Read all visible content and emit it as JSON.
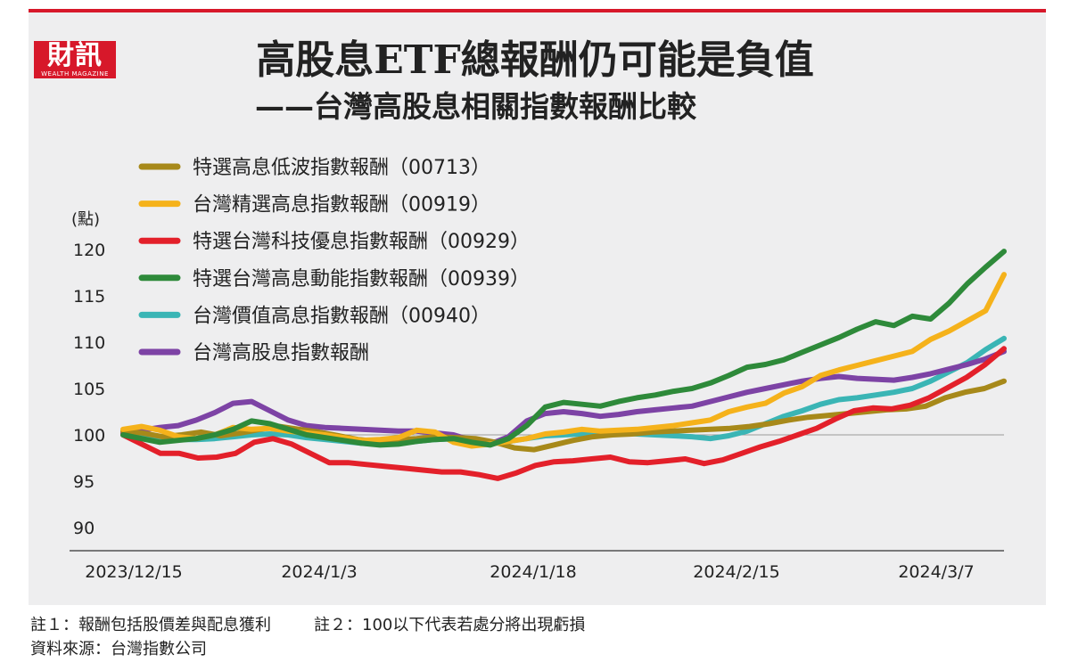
{
  "logo": {
    "text": "財訊",
    "subtext": "WEALTH MAGAZINE"
  },
  "header": {
    "title": "高股息ETF總報酬仍可能是負值",
    "subtitle": "——台灣高股息相關指數報酬比較"
  },
  "colors": {
    "accent": "#d7182a",
    "panel": "#eeeeef"
  },
  "chart_data": {
    "type": "line",
    "yunit": "(點)",
    "ylim": [
      90,
      120
    ],
    "yticks": [
      90,
      95,
      100,
      105,
      110,
      115,
      120
    ],
    "baseline": 100,
    "x_tick_labels": [
      "2023/12/15",
      "2024/1/3",
      "2024/1/18",
      "2024/2/15",
      "2024/3/7"
    ],
    "legend_position": "top-left",
    "series": [
      {
        "name": "特選高息低波指數報酬（00713）",
        "color": "#a7891a",
        "values": [
          100.4,
          100.2,
          99.8,
          100.0,
          100.3,
          99.9,
          100.2,
          100.6,
          100.9,
          100.6,
          100.3,
          99.9,
          99.5,
          99.3,
          99.5,
          99.6,
          99.8,
          99.7,
          99.6,
          99.2,
          98.6,
          98.4,
          98.9,
          99.4,
          99.8,
          100.0,
          100.1,
          100.3,
          100.4,
          100.5,
          100.6,
          100.7,
          100.9,
          101.2,
          101.6,
          101.9,
          102.1,
          102.3,
          102.5,
          102.7,
          102.8,
          103.1,
          104.0,
          104.6,
          105.0,
          105.8
        ]
      },
      {
        "name": "台灣精選高息指數報酬（00919）",
        "color": "#f5b21b",
        "values": [
          100.6,
          100.9,
          100.5,
          99.8,
          99.6,
          100.0,
          100.8,
          100.6,
          100.7,
          100.4,
          100.2,
          100.0,
          99.7,
          99.4,
          99.5,
          99.7,
          100.5,
          100.3,
          99.2,
          98.8,
          99.0,
          99.3,
          99.6,
          100.1,
          100.3,
          100.6,
          100.4,
          100.5,
          100.6,
          100.8,
          101.0,
          101.3,
          101.6,
          102.5,
          103.0,
          103.4,
          104.5,
          105.2,
          106.4,
          107.0,
          107.5,
          108.0,
          108.5,
          109.0,
          110.3,
          111.2,
          112.3,
          113.4,
          117.3
        ]
      },
      {
        "name": "特選台灣科技優息指數報酬（00929）",
        "color": "#e3202a",
        "values": [
          100.0,
          99.0,
          98.0,
          98.0,
          97.5,
          97.6,
          98.0,
          99.2,
          99.6,
          99.0,
          98.0,
          97.0,
          97.0,
          96.8,
          96.6,
          96.4,
          96.2,
          96.0,
          96.0,
          95.7,
          95.3,
          95.9,
          96.7,
          97.1,
          97.2,
          97.4,
          97.6,
          97.1,
          97.0,
          97.2,
          97.4,
          96.9,
          97.3,
          98.0,
          98.7,
          99.3,
          100.0,
          100.7,
          101.7,
          102.6,
          102.9,
          102.8,
          103.2,
          104.0,
          105.1,
          106.2,
          107.6,
          109.3
        ]
      },
      {
        "name": "特選台灣高息動能指數報酬（00939）",
        "color": "#2e8a3a",
        "values": [
          100.0,
          99.6,
          99.2,
          99.4,
          99.6,
          100.0,
          100.6,
          101.5,
          101.2,
          100.6,
          100.0,
          99.7,
          99.4,
          99.1,
          98.9,
          99.0,
          99.3,
          99.5,
          99.6,
          99.2,
          98.9,
          99.6,
          101.0,
          103.0,
          103.5,
          103.3,
          103.1,
          103.6,
          104.0,
          104.3,
          104.7,
          105.0,
          105.6,
          106.4,
          107.3,
          107.6,
          108.1,
          108.9,
          109.7,
          110.5,
          111.4,
          112.2,
          111.8,
          112.8,
          112.5,
          114.2,
          116.3,
          118.1,
          119.8
        ]
      },
      {
        "name": "台灣價值高息指數報酬（00940）",
        "color": "#3ab5b5",
        "values": [
          100.0,
          99.8,
          99.6,
          99.5,
          99.5,
          99.6,
          99.8,
          100.0,
          100.1,
          100.0,
          99.7,
          99.5,
          99.3,
          99.1,
          99.0,
          99.1,
          99.3,
          99.5,
          99.6,
          99.4,
          99.2,
          99.3,
          99.6,
          99.9,
          100.0,
          100.1,
          100.3,
          100.2,
          100.1,
          100.0,
          99.9,
          99.8,
          99.6,
          99.9,
          100.4,
          101.2,
          102.0,
          102.6,
          103.3,
          103.8,
          104.0,
          104.3,
          104.6,
          105.0,
          105.8,
          106.8,
          107.8,
          109.2,
          110.4
        ]
      },
      {
        "name": "台灣高股息指數報酬",
        "color": "#7d43a5",
        "values": [
          100.2,
          100.5,
          100.8,
          101.0,
          101.6,
          102.4,
          103.4,
          103.6,
          102.6,
          101.6,
          101.0,
          100.8,
          100.7,
          100.6,
          100.5,
          100.4,
          100.4,
          100.2,
          100.0,
          99.4,
          99.0,
          99.8,
          101.5,
          102.3,
          102.5,
          102.3,
          102.0,
          102.2,
          102.5,
          102.7,
          102.9,
          103.1,
          103.6,
          104.1,
          104.6,
          105.0,
          105.4,
          105.8,
          106.1,
          106.3,
          106.1,
          106.0,
          105.9,
          106.2,
          106.6,
          107.1,
          107.6,
          108.2,
          109.0
        ]
      }
    ]
  },
  "footnotes": {
    "note1": "註１：報酬包括股價差與配息獲利",
    "note2": "註２：100以下代表若處分將出現虧損",
    "source": "資料來源：台灣指數公司"
  }
}
